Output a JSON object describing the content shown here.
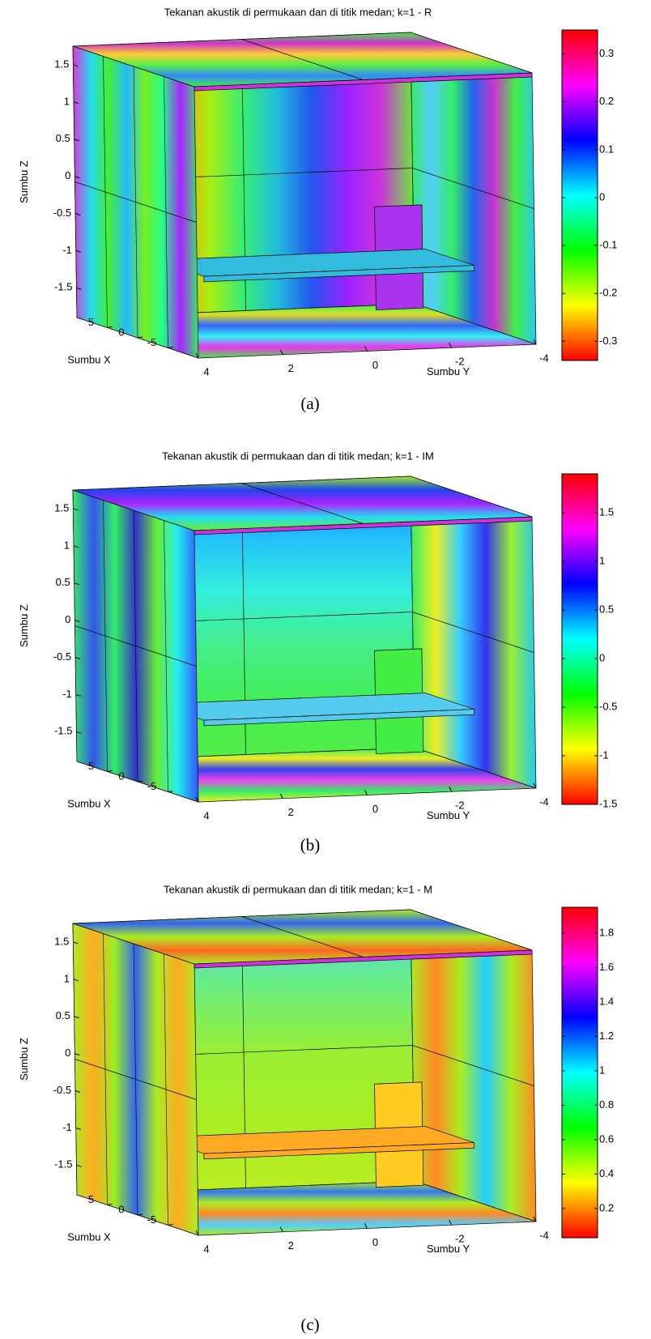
{
  "chart_data": [
    {
      "type": "surface3d",
      "title": "Tekanan akustik di permukaan dan di titik medan; k=1 - R",
      "xlabel": "Sumbu X",
      "ylabel": "Sumbu Y",
      "zlabel": "Sumbu Z",
      "caption": "(a)",
      "xlim": [
        -10,
        10
      ],
      "xticks": [
        5,
        0,
        -5
      ],
      "ylim": [
        4,
        -4
      ],
      "yticks": [
        4,
        2,
        0,
        -2,
        -4
      ],
      "zlim": [
        -1.9,
        1.75
      ],
      "zticks": [
        1.5,
        1,
        0.5,
        0,
        -0.5,
        -1,
        -1.5
      ],
      "colorbar": {
        "colormap": "hsv",
        "clim": [
          -0.34,
          0.35
        ],
        "ticks": [
          0.3,
          0.2,
          0.1,
          0,
          -0.1,
          -0.2,
          -0.3
        ]
      }
    },
    {
      "type": "surface3d",
      "title": "Tekanan akustik di permukaan dan di titik medan; k=1 - IM",
      "xlabel": "Sumbu X",
      "ylabel": "Sumbu Y",
      "zlabel": "Sumbu Z",
      "caption": "(b)",
      "xlim": [
        -10,
        10
      ],
      "xticks": [
        5,
        0,
        -5
      ],
      "ylim": [
        4,
        -4
      ],
      "yticks": [
        4,
        2,
        0,
        -2,
        -4
      ],
      "zlim": [
        -1.9,
        1.75
      ],
      "zticks": [
        1.5,
        1,
        0.5,
        0,
        -0.5,
        -1,
        -1.5
      ],
      "colorbar": {
        "colormap": "hsv",
        "clim": [
          -1.5,
          1.9
        ],
        "ticks": [
          1.5,
          1,
          0.5,
          0,
          -0.5,
          -1,
          -1.5
        ]
      }
    },
    {
      "type": "surface3d",
      "title": "Tekanan akustik di permukaan dan di titik medan; k=1 - M",
      "xlabel": "Sumbu X",
      "ylabel": "Sumbu Y",
      "zlabel": "Sumbu Z",
      "caption": "(c)",
      "xlim": [
        -10,
        10
      ],
      "xticks": [
        5,
        0,
        -5
      ],
      "ylim": [
        4,
        -4
      ],
      "yticks": [
        4,
        2,
        0,
        -2,
        -4
      ],
      "zlim": [
        -1.9,
        1.75
      ],
      "zticks": [
        1.5,
        1,
        0.5,
        0,
        -0.5,
        -1,
        -1.5
      ],
      "colorbar": {
        "colormap": "hsv",
        "clim": [
          0.03,
          1.95
        ],
        "ticks": [
          1.8,
          1.6,
          1.4,
          1.2,
          1,
          0.8,
          0.6,
          0.4,
          0.2
        ]
      }
    }
  ]
}
